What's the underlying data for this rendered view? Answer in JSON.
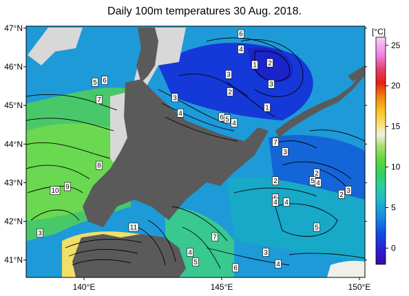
{
  "title": "Daily 100m temperatures 30 Aug. 2018.",
  "colorbar": {
    "unit": "[°C]",
    "ticks": [
      "25",
      "20",
      "15",
      "10",
      "5",
      "0"
    ],
    "tick_values": [
      25,
      20,
      15,
      10,
      5,
      0
    ],
    "range": [
      -2,
      26
    ]
  },
  "axes": {
    "lat_ticks": [
      "47°N",
      "46°N",
      "45°N",
      "44°N",
      "43°N",
      "42°N",
      "41°N"
    ],
    "lat_values": [
      47,
      46,
      45,
      44,
      43,
      42,
      41
    ],
    "lon_ticks": [
      "140°E",
      "145°E",
      "150°E"
    ],
    "lon_values": [
      140,
      145,
      150
    ],
    "lon_range": [
      137.9,
      150.2
    ],
    "lat_range": [
      40.55,
      47.05
    ]
  },
  "contour_labels": [
    {
      "text": "6",
      "lon": 145.7,
      "lat": 46.85
    },
    {
      "text": "4",
      "lon": 145.7,
      "lat": 46.45
    },
    {
      "text": "1",
      "lon": 146.2,
      "lat": 46.05
    },
    {
      "text": "2",
      "lon": 146.75,
      "lat": 46.1
    },
    {
      "text": "3",
      "lon": 145.25,
      "lat": 45.8
    },
    {
      "text": "3",
      "lon": 146.8,
      "lat": 45.55
    },
    {
      "text": "2",
      "lon": 145.3,
      "lat": 45.35
    },
    {
      "text": "5",
      "lon": 140.4,
      "lat": 45.6
    },
    {
      "text": "6",
      "lon": 140.75,
      "lat": 45.65
    },
    {
      "text": "7",
      "lon": 140.55,
      "lat": 45.15
    },
    {
      "text": "3",
      "lon": 143.3,
      "lat": 45.2
    },
    {
      "text": "4",
      "lon": 143.5,
      "lat": 44.8
    },
    {
      "text": "1",
      "lon": 146.65,
      "lat": 44.95
    },
    {
      "text": "6",
      "lon": 145.0,
      "lat": 44.7
    },
    {
      "text": "5",
      "lon": 145.2,
      "lat": 44.65
    },
    {
      "text": "4",
      "lon": 145.45,
      "lat": 44.55
    },
    {
      "text": "7",
      "lon": 146.95,
      "lat": 44.05
    },
    {
      "text": "3",
      "lon": 147.3,
      "lat": 43.8
    },
    {
      "text": "8",
      "lon": 140.55,
      "lat": 43.45
    },
    {
      "text": "10",
      "lon": 138.95,
      "lat": 42.8
    },
    {
      "text": "9",
      "lon": 139.4,
      "lat": 42.9
    },
    {
      "text": "2",
      "lon": 146.95,
      "lat": 43.05
    },
    {
      "text": "2",
      "lon": 148.45,
      "lat": 43.25
    },
    {
      "text": "5",
      "lon": 148.3,
      "lat": 43.05
    },
    {
      "text": "4",
      "lon": 148.5,
      "lat": 43.0
    },
    {
      "text": "2",
      "lon": 149.35,
      "lat": 42.7
    },
    {
      "text": "3",
      "lon": 149.6,
      "lat": 42.8
    },
    {
      "text": "5",
      "lon": 146.95,
      "lat": 42.6
    },
    {
      "text": "4",
      "lon": 146.95,
      "lat": 42.5
    },
    {
      "text": "4",
      "lon": 147.35,
      "lat": 42.5
    },
    {
      "text": "5",
      "lon": 148.45,
      "lat": 41.85
    },
    {
      "text": "3",
      "lon": 138.4,
      "lat": 41.7
    },
    {
      "text": "11",
      "lon": 141.8,
      "lat": 41.85
    },
    {
      "text": "7",
      "lon": 144.75,
      "lat": 41.6
    },
    {
      "text": "4",
      "lon": 143.85,
      "lat": 41.2
    },
    {
      "text": "5",
      "lon": 144.05,
      "lat": 40.95
    },
    {
      "text": "3",
      "lon": 146.6,
      "lat": 41.2
    },
    {
      "text": "6",
      "lon": 145.5,
      "lat": 40.8
    },
    {
      "text": "4",
      "lon": 147.05,
      "lat": 40.9
    }
  ]
}
